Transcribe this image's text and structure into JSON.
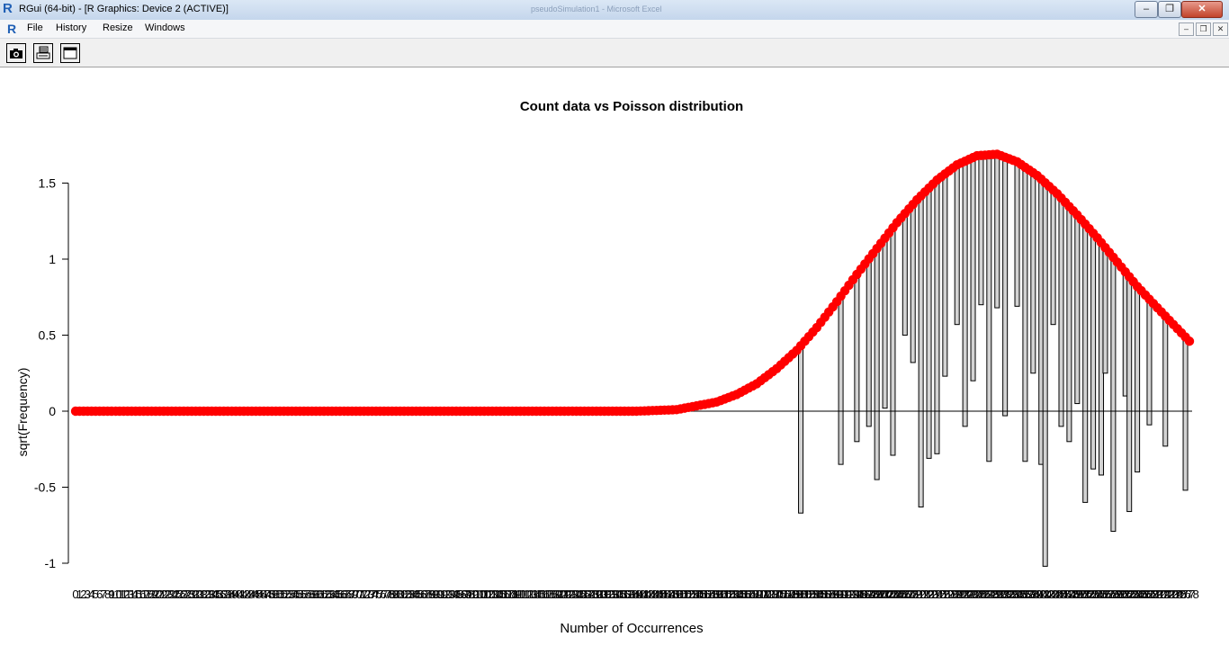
{
  "window": {
    "title": "RGui (64-bit) - [R Graphics: Device 2 (ACTIVE)]",
    "background_title": "pseudoSimulation1 - Microsoft Excel",
    "logo_letter": "R",
    "min_glyph": "–",
    "max_glyph": "❐",
    "close_glyph": "✕"
  },
  "menu": {
    "items": [
      "File",
      "History",
      "Resize",
      "Windows"
    ],
    "mdi_min": "–",
    "mdi_restore": "❐",
    "mdi_close": "✕"
  },
  "toolbar": {
    "buttons": [
      "camera-icon",
      "printer-icon",
      "window-icon"
    ]
  },
  "chart_data": {
    "type": "bar",
    "subtype": "hanging rootogram",
    "title": "Count data vs Poisson distribution",
    "xlabel": "Number of Occurrences",
    "ylabel": "sqrt(Frequency)",
    "ylim": [
      -1,
      1.5
    ],
    "yticks": [
      "-1",
      "-0.5",
      "0",
      "0.5",
      "1",
      "1.5"
    ],
    "x_categories_range": [
      0,
      278
    ],
    "x_tick_labels_note": "one label per integer 0-278, overlapping",
    "expected_series": {
      "name": "",
      "style": "red points",
      "color": "#ff0000",
      "x": [
        0,
        140,
        150,
        160,
        165,
        170,
        175,
        180,
        185,
        190,
        195,
        200,
        205,
        210,
        215,
        220,
        225,
        230,
        235,
        240,
        245,
        250,
        255,
        260,
        265,
        270,
        278
      ],
      "y": [
        0,
        0,
        0.01,
        0.06,
        0.11,
        0.18,
        0.28,
        0.4,
        0.55,
        0.72,
        0.9,
        1.07,
        1.24,
        1.39,
        1.52,
        1.62,
        1.68,
        1.69,
        1.64,
        1.55,
        1.43,
        1.29,
        1.14,
        0.98,
        0.82,
        0.68,
        0.46
      ]
    },
    "observed_bars": {
      "style": "grey hanging bars",
      "color": "#d3d3d3",
      "bottoms": [
        {
          "x": 181,
          "y": -0.67
        },
        {
          "x": 191,
          "y": -0.35
        },
        {
          "x": 195,
          "y": -0.2
        },
        {
          "x": 198,
          "y": -0.1
        },
        {
          "x": 200,
          "y": -0.45
        },
        {
          "x": 202,
          "y": 0.02
        },
        {
          "x": 204,
          "y": -0.29
        },
        {
          "x": 207,
          "y": 0.5
        },
        {
          "x": 209,
          "y": 0.32
        },
        {
          "x": 211,
          "y": -0.63
        },
        {
          "x": 213,
          "y": -0.31
        },
        {
          "x": 215,
          "y": -0.28
        },
        {
          "x": 217,
          "y": 0.23
        },
        {
          "x": 220,
          "y": 0.57
        },
        {
          "x": 222,
          "y": -0.1
        },
        {
          "x": 224,
          "y": 0.2
        },
        {
          "x": 226,
          "y": 0.7
        },
        {
          "x": 228,
          "y": -0.33
        },
        {
          "x": 230,
          "y": 0.68
        },
        {
          "x": 232,
          "y": -0.03
        },
        {
          "x": 235,
          "y": 0.69
        },
        {
          "x": 237,
          "y": -0.33
        },
        {
          "x": 239,
          "y": 0.25
        },
        {
          "x": 241,
          "y": -0.35
        },
        {
          "x": 242,
          "y": -1.02
        },
        {
          "x": 244,
          "y": 0.57
        },
        {
          "x": 246,
          "y": -0.1
        },
        {
          "x": 248,
          "y": -0.2
        },
        {
          "x": 250,
          "y": 0.05
        },
        {
          "x": 252,
          "y": -0.6
        },
        {
          "x": 254,
          "y": -0.38
        },
        {
          "x": 256,
          "y": -0.42
        },
        {
          "x": 257,
          "y": 0.25
        },
        {
          "x": 259,
          "y": -0.79
        },
        {
          "x": 262,
          "y": 0.1
        },
        {
          "x": 263,
          "y": -0.66
        },
        {
          "x": 265,
          "y": -0.4
        },
        {
          "x": 268,
          "y": -0.09
        },
        {
          "x": 272,
          "y": -0.23
        },
        {
          "x": 277,
          "y": -0.52
        }
      ]
    }
  }
}
